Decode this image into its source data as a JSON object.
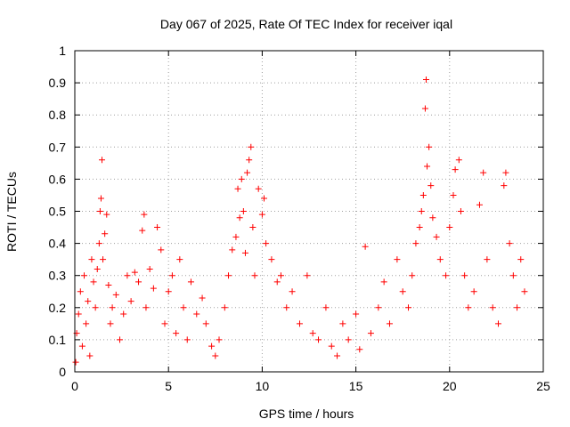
{
  "chart_data": {
    "type": "scatter",
    "title": "Day 067 of 2025, Rate Of TEC Index for receiver iqal",
    "xlabel": "GPS time / hours",
    "ylabel": "ROTI / TECUs",
    "xlim": [
      0,
      25
    ],
    "ylim": [
      0,
      1
    ],
    "xticks": [
      0,
      5,
      10,
      15,
      20,
      25
    ],
    "xtick_labels": [
      "0",
      "5",
      "10",
      "15",
      "20",
      "25"
    ],
    "yticks": [
      0,
      0.1,
      0.2,
      0.3,
      0.4,
      0.5,
      0.6,
      0.7,
      0.8,
      0.9,
      1
    ],
    "ytick_labels": [
      "0",
      "0.1",
      "0.2",
      "0.3",
      "0.4",
      "0.5",
      "0.6",
      "0.7",
      "0.8",
      "0.9",
      "1"
    ],
    "grid": true,
    "marker": "+",
    "color": "#ff0000",
    "series": [
      {
        "points": [
          [
            0.05,
            0.03
          ],
          [
            0.1,
            0.12
          ],
          [
            0.2,
            0.18
          ],
          [
            0.3,
            0.25
          ],
          [
            0.4,
            0.08
          ],
          [
            0.5,
            0.3
          ],
          [
            0.6,
            0.15
          ],
          [
            0.7,
            0.22
          ],
          [
            0.8,
            0.05
          ],
          [
            0.9,
            0.35
          ],
          [
            1.0,
            0.28
          ],
          [
            1.1,
            0.2
          ],
          [
            1.2,
            0.32
          ],
          [
            1.3,
            0.4
          ],
          [
            1.35,
            0.5
          ],
          [
            1.4,
            0.54
          ],
          [
            1.45,
            0.66
          ],
          [
            1.5,
            0.35
          ],
          [
            1.6,
            0.43
          ],
          [
            1.7,
            0.49
          ],
          [
            1.8,
            0.27
          ],
          [
            1.9,
            0.15
          ],
          [
            2.0,
            0.2
          ],
          [
            2.2,
            0.24
          ],
          [
            2.4,
            0.1
          ],
          [
            2.6,
            0.18
          ],
          [
            2.8,
            0.3
          ],
          [
            3.0,
            0.22
          ],
          [
            3.2,
            0.31
          ],
          [
            3.4,
            0.28
          ],
          [
            3.6,
            0.44
          ],
          [
            3.7,
            0.49
          ],
          [
            3.8,
            0.2
          ],
          [
            4.0,
            0.32
          ],
          [
            4.2,
            0.26
          ],
          [
            4.4,
            0.45
          ],
          [
            4.6,
            0.38
          ],
          [
            4.8,
            0.15
          ],
          [
            5.0,
            0.25
          ],
          [
            5.2,
            0.3
          ],
          [
            5.4,
            0.12
          ],
          [
            5.6,
            0.35
          ],
          [
            5.8,
            0.2
          ],
          [
            6.0,
            0.1
          ],
          [
            6.2,
            0.28
          ],
          [
            6.5,
            0.18
          ],
          [
            6.8,
            0.23
          ],
          [
            7.0,
            0.15
          ],
          [
            7.3,
            0.08
          ],
          [
            7.5,
            0.05
          ],
          [
            7.7,
            0.1
          ],
          [
            8.0,
            0.2
          ],
          [
            8.2,
            0.3
          ],
          [
            8.4,
            0.38
          ],
          [
            8.6,
            0.42
          ],
          [
            8.7,
            0.57
          ],
          [
            8.8,
            0.48
          ],
          [
            8.9,
            0.6
          ],
          [
            9.0,
            0.5
          ],
          [
            9.1,
            0.37
          ],
          [
            9.2,
            0.62
          ],
          [
            9.3,
            0.66
          ],
          [
            9.4,
            0.7
          ],
          [
            9.5,
            0.45
          ],
          [
            9.6,
            0.3
          ],
          [
            9.8,
            0.57
          ],
          [
            10.0,
            0.49
          ],
          [
            10.1,
            0.54
          ],
          [
            10.2,
            0.4
          ],
          [
            10.5,
            0.35
          ],
          [
            10.8,
            0.28
          ],
          [
            11.0,
            0.3
          ],
          [
            11.3,
            0.2
          ],
          [
            11.6,
            0.25
          ],
          [
            12.0,
            0.15
          ],
          [
            12.4,
            0.3
          ],
          [
            12.7,
            0.12
          ],
          [
            13.0,
            0.1
          ],
          [
            13.4,
            0.2
          ],
          [
            13.7,
            0.08
          ],
          [
            14.0,
            0.05
          ],
          [
            14.3,
            0.15
          ],
          [
            14.6,
            0.1
          ],
          [
            15.0,
            0.18
          ],
          [
            15.2,
            0.07
          ],
          [
            15.5,
            0.39
          ],
          [
            15.8,
            0.12
          ],
          [
            16.2,
            0.2
          ],
          [
            16.5,
            0.28
          ],
          [
            16.8,
            0.15
          ],
          [
            17.2,
            0.35
          ],
          [
            17.5,
            0.25
          ],
          [
            17.8,
            0.2
          ],
          [
            18.0,
            0.3
          ],
          [
            18.2,
            0.4
          ],
          [
            18.4,
            0.45
          ],
          [
            18.5,
            0.5
          ],
          [
            18.6,
            0.55
          ],
          [
            18.7,
            0.82
          ],
          [
            18.75,
            0.91
          ],
          [
            18.8,
            0.64
          ],
          [
            18.9,
            0.7
          ],
          [
            19.0,
            0.58
          ],
          [
            19.1,
            0.48
          ],
          [
            19.3,
            0.42
          ],
          [
            19.5,
            0.35
          ],
          [
            19.8,
            0.3
          ],
          [
            20.0,
            0.45
          ],
          [
            20.2,
            0.55
          ],
          [
            20.3,
            0.63
          ],
          [
            20.5,
            0.66
          ],
          [
            20.6,
            0.5
          ],
          [
            20.8,
            0.3
          ],
          [
            21.0,
            0.2
          ],
          [
            21.3,
            0.25
          ],
          [
            21.6,
            0.52
          ],
          [
            21.8,
            0.62
          ],
          [
            22.0,
            0.35
          ],
          [
            22.3,
            0.2
          ],
          [
            22.6,
            0.15
          ],
          [
            22.9,
            0.58
          ],
          [
            23.0,
            0.62
          ],
          [
            23.2,
            0.4
          ],
          [
            23.4,
            0.3
          ],
          [
            23.6,
            0.2
          ],
          [
            23.8,
            0.35
          ],
          [
            24.0,
            0.25
          ]
        ]
      }
    ]
  }
}
